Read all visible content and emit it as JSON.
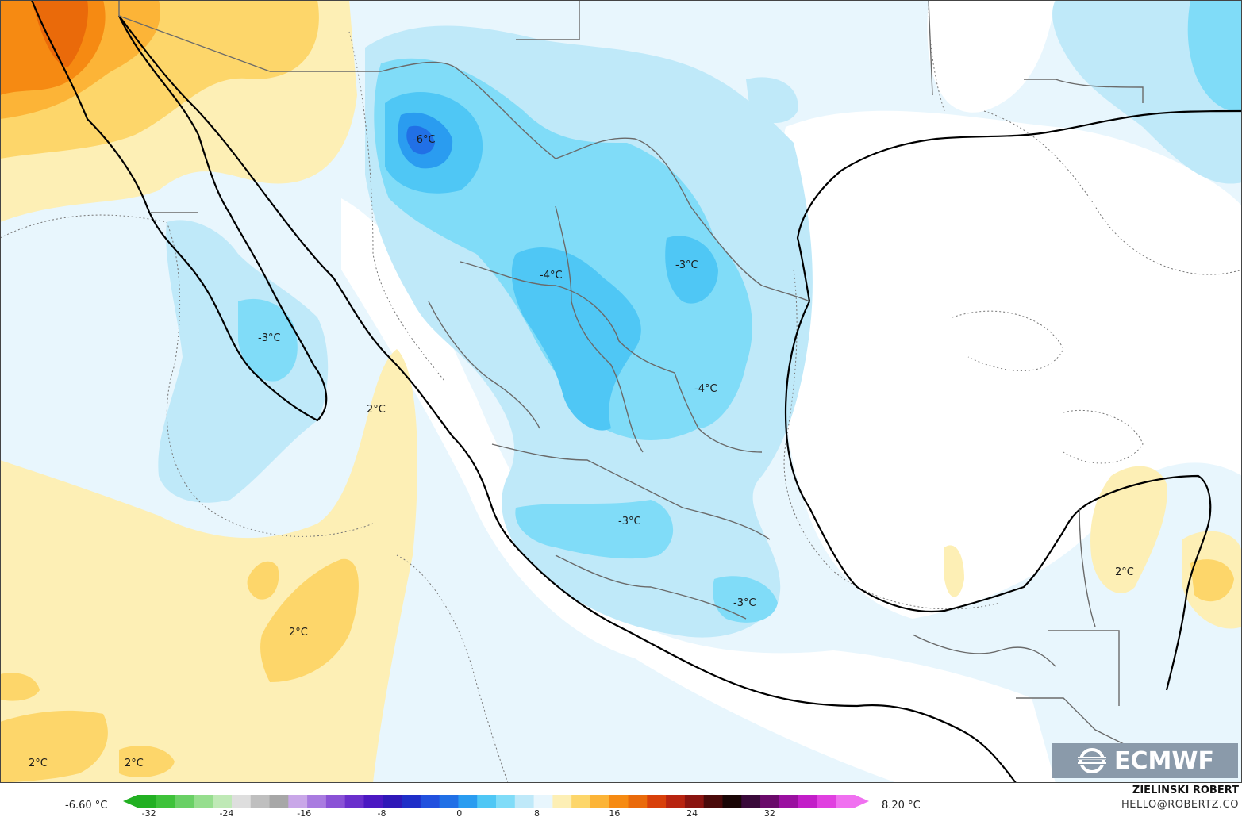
{
  "map": {
    "contour_labels": [
      "-6°C",
      "-4°C",
      "-3°C",
      "-3°C",
      "-4°C",
      "-3°C",
      "-3°C",
      "2°C",
      "2°C",
      "2°C",
      "2°C",
      "2°C"
    ],
    "colors": {
      "warm_light": "#fdefb5",
      "warm_mid": "#fdd66a",
      "warm_strong": "#fcb437",
      "hot": "#f68a12",
      "hotter": "#ea6a0a",
      "cold_light": "#e8f6fd",
      "cold_1": "#bfe9f9",
      "cold_2": "#80dcf8",
      "cold_3": "#4fc7f5",
      "cold_4": "#2a9cf0",
      "cold_5": "#2170e6",
      "coastline": "#000000",
      "borders": "#666666"
    }
  },
  "logo": {
    "text": "ECMWF",
    "icon": "ecmwf-logo-icon"
  },
  "legend": {
    "min_label": "-6.60 °C",
    "max_label": "8.20 °C",
    "ticks": [
      "-32",
      "-24",
      "-16",
      "-8",
      "0",
      "8",
      "16",
      "24",
      "32"
    ],
    "colors": [
      "#22b022",
      "#3ec23a",
      "#69d065",
      "#96de8e",
      "#bfe9b6",
      "#dedede",
      "#bfbfbf",
      "#a7a7a7",
      "#c9a7e8",
      "#a97be0",
      "#8a52d6",
      "#6a2fcc",
      "#4b18c2",
      "#2f18b8",
      "#1f2ec8",
      "#2150de",
      "#2170e6",
      "#2a9cf0",
      "#4fc7f5",
      "#80dcf8",
      "#bfe9f9",
      "#e8f6fd",
      "#fdefb5",
      "#fdd66a",
      "#fcb437",
      "#f68a12",
      "#ea6a0a",
      "#d8400a",
      "#b82410",
      "#8a1410",
      "#4a0a0a",
      "#1a0606",
      "#3a0a3a",
      "#6a0a6a",
      "#9a10a0",
      "#c21ec8",
      "#e040e0",
      "#f070f0"
    ]
  },
  "credits": {
    "author": "ZIELINSKI ROBERT",
    "email": "HELLO@ROBERTZ.CO"
  }
}
